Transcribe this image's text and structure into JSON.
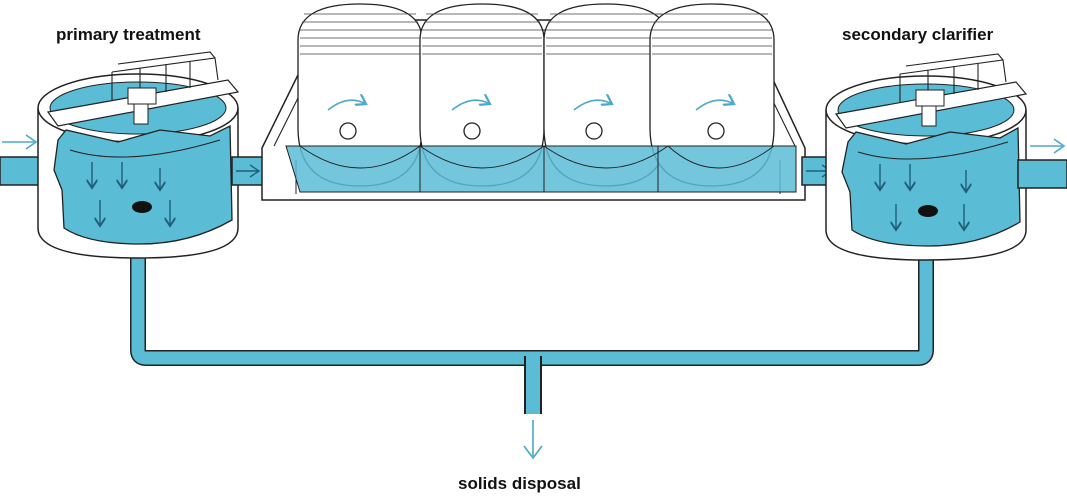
{
  "labels": {
    "primary": "primary treatment",
    "secondary": "secondary clarifier",
    "solids": "solids disposal"
  },
  "colors": {
    "water": "#5bbcd6",
    "outline": "#222222",
    "arrow": "#4aa8c8",
    "background": "#ffffff"
  },
  "icons": {
    "flow_arrow": "right-arrow-icon",
    "settling_arrow": "down-arrow-icon",
    "rotation_arrow": "rotation-arrow-icon"
  }
}
